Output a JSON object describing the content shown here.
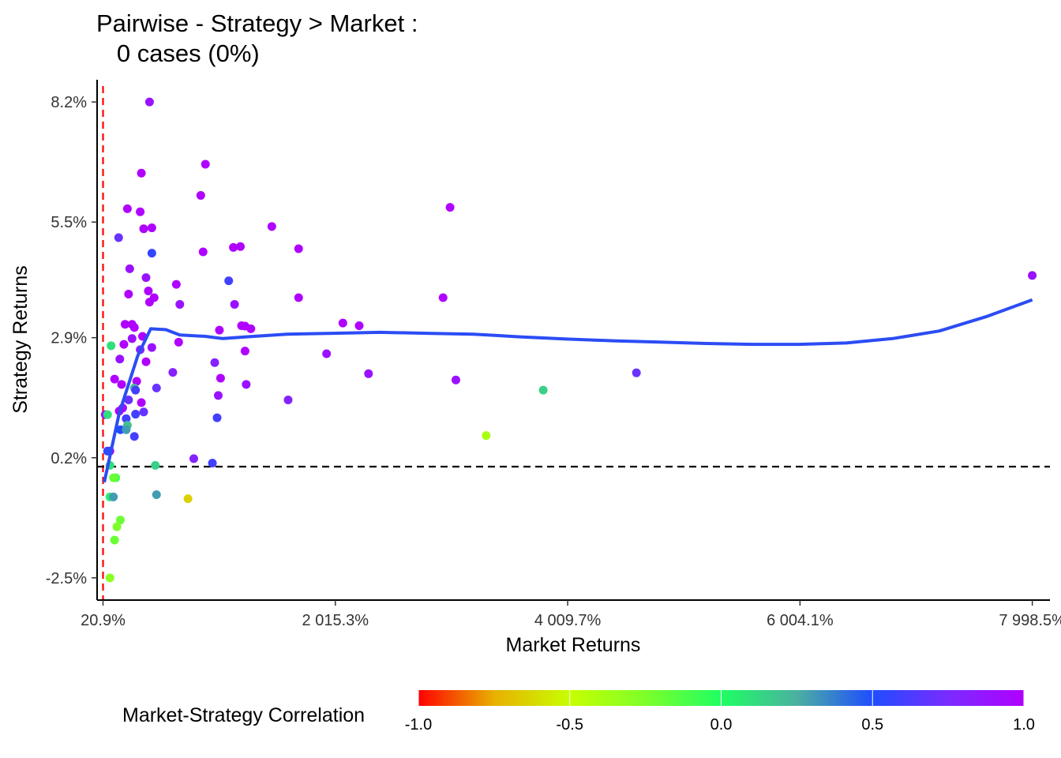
{
  "chart_data": {
    "type": "scatter",
    "title_lines": [
      "Pairwise - Strategy > Market :",
      "   0 cases (0%)"
    ],
    "xlabel": "Market Returns",
    "ylabel": "Strategy Returns",
    "xlim": [
      -30,
      8150
    ],
    "ylim": [
      -3.0,
      8.7
    ],
    "x_ticks": [
      {
        "value": 20.9,
        "label": "20.9%"
      },
      {
        "value": 2015.3,
        "label": "2 015.3%"
      },
      {
        "value": 4009.7,
        "label": "4 009.7%"
      },
      {
        "value": 6004.1,
        "label": "6 004.1%"
      },
      {
        "value": 7998.5,
        "label": "7 998.5%"
      }
    ],
    "y_ticks": [
      {
        "value": -2.5,
        "label": "-2.5%"
      },
      {
        "value": 0.2,
        "label": "0.2%"
      },
      {
        "value": 2.9,
        "label": "2.9%"
      },
      {
        "value": 5.5,
        "label": "5.5%"
      },
      {
        "value": 8.2,
        "label": "8.2%"
      }
    ],
    "reference_lines": {
      "vertical_x": 20.9,
      "vertical_color": "#ff0000",
      "horizontal_y": 0.0,
      "horizontal_color": "#000000"
    },
    "smooth_color": "#2b4cf5",
    "smooth_curve": [
      [
        32,
        -0.35
      ],
      [
        160,
        1.2
      ],
      [
        320,
        2.5
      ],
      [
        430,
        3.1
      ],
      [
        560,
        3.08
      ],
      [
        680,
        2.96
      ],
      [
        900,
        2.93
      ],
      [
        1050,
        2.88
      ],
      [
        1250,
        2.92
      ],
      [
        1600,
        2.98
      ],
      [
        2000,
        3.0
      ],
      [
        2400,
        3.02
      ],
      [
        2800,
        3.0
      ],
      [
        3200,
        2.98
      ],
      [
        3600,
        2.92
      ],
      [
        4000,
        2.87
      ],
      [
        4400,
        2.83
      ],
      [
        4800,
        2.8
      ],
      [
        5200,
        2.77
      ],
      [
        5600,
        2.75
      ],
      [
        6000,
        2.75
      ],
      [
        6400,
        2.78
      ],
      [
        6800,
        2.88
      ],
      [
        7200,
        3.05
      ],
      [
        7600,
        3.37
      ],
      [
        7998,
        3.75
      ]
    ],
    "points": [
      {
        "x": 420,
        "y": 8.2,
        "c": 0.9
      },
      {
        "x": 900,
        "y": 6.8,
        "c": 1.0
      },
      {
        "x": 350,
        "y": 6.6,
        "c": 1.0
      },
      {
        "x": 860,
        "y": 6.1,
        "c": 1.0
      },
      {
        "x": 3000,
        "y": 5.83,
        "c": 1.0
      },
      {
        "x": 230,
        "y": 5.8,
        "c": 1.0
      },
      {
        "x": 340,
        "y": 5.73,
        "c": 1.0
      },
      {
        "x": 1470,
        "y": 5.4,
        "c": 1.0
      },
      {
        "x": 440,
        "y": 5.37,
        "c": 1.0
      },
      {
        "x": 370,
        "y": 5.35,
        "c": 1.0
      },
      {
        "x": 155,
        "y": 5.15,
        "c": 0.7
      },
      {
        "x": 1200,
        "y": 4.95,
        "c": 1.0
      },
      {
        "x": 1140,
        "y": 4.93,
        "c": 1.0
      },
      {
        "x": 1700,
        "y": 4.9,
        "c": 1.0
      },
      {
        "x": 880,
        "y": 4.83,
        "c": 1.0
      },
      {
        "x": 440,
        "y": 4.8,
        "c": 0.55
      },
      {
        "x": 250,
        "y": 4.45,
        "c": 0.9
      },
      {
        "x": 390,
        "y": 4.25,
        "c": 0.9
      },
      {
        "x": 1100,
        "y": 4.18,
        "c": 0.6
      },
      {
        "x": 7998,
        "y": 4.3,
        "c": 0.9
      },
      {
        "x": 650,
        "y": 4.1,
        "c": 1.0
      },
      {
        "x": 410,
        "y": 3.95,
        "c": 1.0
      },
      {
        "x": 240,
        "y": 3.88,
        "c": 1.0
      },
      {
        "x": 460,
        "y": 3.8,
        "c": 1.0
      },
      {
        "x": 1700,
        "y": 3.8,
        "c": 1.0
      },
      {
        "x": 2940,
        "y": 3.8,
        "c": 1.0
      },
      {
        "x": 420,
        "y": 3.7,
        "c": 1.0
      },
      {
        "x": 680,
        "y": 3.65,
        "c": 0.9
      },
      {
        "x": 1150,
        "y": 3.65,
        "c": 0.9
      },
      {
        "x": 2080,
        "y": 3.23,
        "c": 1.0
      },
      {
        "x": 210,
        "y": 3.2,
        "c": 1.0
      },
      {
        "x": 270,
        "y": 3.2,
        "c": 1.0
      },
      {
        "x": 2220,
        "y": 3.17,
        "c": 1.0
      },
      {
        "x": 1210,
        "y": 3.17,
        "c": 1.0
      },
      {
        "x": 1240,
        "y": 3.16,
        "c": 1.0
      },
      {
        "x": 290,
        "y": 3.13,
        "c": 1.0
      },
      {
        "x": 1290,
        "y": 3.1,
        "c": 1.0
      },
      {
        "x": 1020,
        "y": 3.07,
        "c": 1.0
      },
      {
        "x": 360,
        "y": 2.93,
        "c": 1.0
      },
      {
        "x": 270,
        "y": 2.88,
        "c": 0.9
      },
      {
        "x": 670,
        "y": 2.8,
        "c": 1.0
      },
      {
        "x": 200,
        "y": 2.75,
        "c": 1.0
      },
      {
        "x": 90,
        "y": 2.72,
        "c": 0.1
      },
      {
        "x": 440,
        "y": 2.68,
        "c": 0.9
      },
      {
        "x": 340,
        "y": 2.63,
        "c": 0.8
      },
      {
        "x": 1240,
        "y": 2.6,
        "c": 1.0
      },
      {
        "x": 1940,
        "y": 2.54,
        "c": 0.9
      },
      {
        "x": 165,
        "y": 2.42,
        "c": 0.9
      },
      {
        "x": 390,
        "y": 2.36,
        "c": 1.0
      },
      {
        "x": 980,
        "y": 2.34,
        "c": 0.8
      },
      {
        "x": 620,
        "y": 2.12,
        "c": 0.8
      },
      {
        "x": 2300,
        "y": 2.09,
        "c": 0.9
      },
      {
        "x": 4600,
        "y": 2.11,
        "c": 0.7
      },
      {
        "x": 120,
        "y": 1.97,
        "c": 1.0
      },
      {
        "x": 1030,
        "y": 1.99,
        "c": 1.0
      },
      {
        "x": 3050,
        "y": 1.95,
        "c": 0.9
      },
      {
        "x": 310,
        "y": 1.92,
        "c": 1.0
      },
      {
        "x": 180,
        "y": 1.85,
        "c": 1.0
      },
      {
        "x": 1250,
        "y": 1.85,
        "c": 0.9
      },
      {
        "x": 290,
        "y": 1.77,
        "c": 0.25
      },
      {
        "x": 480,
        "y": 1.77,
        "c": 0.7
      },
      {
        "x": 300,
        "y": 1.72,
        "c": 0.6
      },
      {
        "x": 3800,
        "y": 1.72,
        "c": 0.15
      },
      {
        "x": 1010,
        "y": 1.6,
        "c": 0.9
      },
      {
        "x": 1610,
        "y": 1.5,
        "c": 0.8
      },
      {
        "x": 240,
        "y": 1.5,
        "c": 0.7
      },
      {
        "x": 350,
        "y": 1.44,
        "c": 1.0
      },
      {
        "x": 190,
        "y": 1.32,
        "c": 0.9
      },
      {
        "x": 160,
        "y": 1.25,
        "c": 1.0
      },
      {
        "x": 370,
        "y": 1.23,
        "c": 0.7
      },
      {
        "x": 300,
        "y": 1.18,
        "c": 0.6
      },
      {
        "x": 1000,
        "y": 1.1,
        "c": 0.6
      },
      {
        "x": 220,
        "y": 1.08,
        "c": 0.6
      },
      {
        "x": 40,
        "y": 1.17,
        "c": 0.9
      },
      {
        "x": 60,
        "y": 1.17,
        "c": 0.1
      },
      {
        "x": 230,
        "y": 0.93,
        "c": 0.2
      },
      {
        "x": 170,
        "y": 0.83,
        "c": 0.5
      },
      {
        "x": 220,
        "y": 0.83,
        "c": 0.3
      },
      {
        "x": 290,
        "y": 0.68,
        "c": 0.6
      },
      {
        "x": 3310,
        "y": 0.7,
        "c": -0.4
      },
      {
        "x": 80,
        "y": 0.35,
        "c": 0.9
      },
      {
        "x": 60,
        "y": 0.35,
        "c": 0.55
      },
      {
        "x": 800,
        "y": 0.18,
        "c": 0.8
      },
      {
        "x": 960,
        "y": 0.08,
        "c": 0.6
      },
      {
        "x": 80,
        "y": 0.03,
        "c": 0.1
      },
      {
        "x": 470,
        "y": 0.03,
        "c": 0.15
      },
      {
        "x": 130,
        "y": -0.25,
        "c": -0.1
      },
      {
        "x": 110,
        "y": -0.25,
        "c": -0.2
      },
      {
        "x": 80,
        "y": -0.68,
        "c": 0.05
      },
      {
        "x": 110,
        "y": -0.68,
        "c": 0.3
      },
      {
        "x": 480,
        "y": -0.63,
        "c": 0.3
      },
      {
        "x": 750,
        "y": -0.72,
        "c": -0.65
      },
      {
        "x": 170,
        "y": -1.2,
        "c": -0.2
      },
      {
        "x": 140,
        "y": -1.35,
        "c": -0.25
      },
      {
        "x": 120,
        "y": -1.65,
        "c": -0.2
      },
      {
        "x": 80,
        "y": -2.5,
        "c": -0.3
      }
    ],
    "legend": {
      "title": "Market-Strategy Correlation",
      "position": "bottom",
      "range": [
        -1.0,
        1.0
      ],
      "tick_labels": [
        {
          "value": -1.0,
          "label": "-1.0"
        },
        {
          "value": -0.5,
          "label": "-0.5"
        },
        {
          "value": 0.0,
          "label": "0.0"
        },
        {
          "value": 0.5,
          "label": "0.5"
        },
        {
          "value": 1.0,
          "label": "1.0"
        }
      ],
      "gradient_colors": [
        "#ff0000",
        "#e8b000",
        "#c7ff00",
        "#7dff2a",
        "#1eff62",
        "#4bb0a0",
        "#1f4dff",
        "#7a2bff",
        "#b000ff"
      ]
    }
  }
}
